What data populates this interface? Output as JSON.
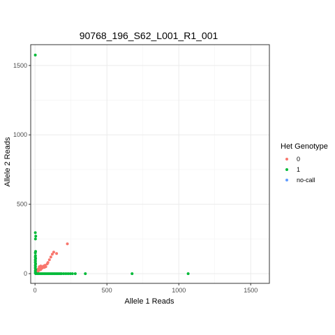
{
  "chart_data": {
    "type": "scatter",
    "title": "90768_196_S62_L001_R1_001",
    "xlabel": "Allele 1 Reads",
    "ylabel": "Allele 2 Reads",
    "xlim": [
      -30,
      1630
    ],
    "ylim": [
      -70,
      1650
    ],
    "x_ticks": [
      0,
      500,
      1000,
      1500
    ],
    "y_ticks": [
      0,
      500,
      1000,
      1500
    ],
    "x_tick_labels": [
      "0",
      "500",
      "1000",
      "1500"
    ],
    "y_tick_labels": [
      "0",
      "500",
      "1000",
      "1500"
    ],
    "grid": true,
    "legend": {
      "title": "Het Genotype",
      "position": "right",
      "entries": [
        {
          "label": "0",
          "color": "#F8766D"
        },
        {
          "label": "1",
          "color": "#00BA38"
        },
        {
          "label": "no-call",
          "color": "#619CFF"
        }
      ]
    },
    "series": [
      {
        "name": "0",
        "color": "#F8766D",
        "points": [
          [
            10,
            10
          ],
          [
            15,
            20
          ],
          [
            20,
            30
          ],
          [
            25,
            35
          ],
          [
            30,
            25
          ],
          [
            35,
            40
          ],
          [
            40,
            30
          ],
          [
            45,
            45
          ],
          [
            50,
            40
          ],
          [
            55,
            50
          ],
          [
            60,
            55
          ],
          [
            65,
            45
          ],
          [
            70,
            60
          ],
          [
            75,
            50
          ],
          [
            85,
            70
          ],
          [
            90,
            80
          ],
          [
            100,
            100
          ],
          [
            110,
            120
          ],
          [
            120,
            140
          ],
          [
            130,
            155
          ],
          [
            150,
            145
          ],
          [
            225,
            215
          ],
          [
            20,
            15
          ],
          [
            30,
            50
          ],
          [
            40,
            55
          ]
        ]
      },
      {
        "name": "1",
        "color": "#00BA38",
        "points": [
          [
            2,
            1575
          ],
          [
            2,
            295
          ],
          [
            5,
            270
          ],
          [
            3,
            250
          ],
          [
            4,
            160
          ],
          [
            2,
            150
          ],
          [
            3,
            130
          ],
          [
            2,
            120
          ],
          [
            4,
            110
          ],
          [
            2,
            100
          ],
          [
            3,
            90
          ],
          [
            2,
            80
          ],
          [
            4,
            70
          ],
          [
            2,
            60
          ],
          [
            3,
            50
          ],
          [
            2,
            40
          ],
          [
            4,
            30
          ],
          [
            2,
            20
          ],
          [
            3,
            10
          ],
          [
            2,
            5
          ],
          [
            5,
            0
          ],
          [
            15,
            0
          ],
          [
            25,
            0
          ],
          [
            35,
            0
          ],
          [
            45,
            0
          ],
          [
            55,
            0
          ],
          [
            65,
            0
          ],
          [
            75,
            0
          ],
          [
            85,
            0
          ],
          [
            95,
            0
          ],
          [
            105,
            0
          ],
          [
            115,
            0
          ],
          [
            125,
            0
          ],
          [
            135,
            0
          ],
          [
            145,
            0
          ],
          [
            155,
            0
          ],
          [
            165,
            0
          ],
          [
            175,
            0
          ],
          [
            185,
            0
          ],
          [
            200,
            0
          ],
          [
            215,
            0
          ],
          [
            230,
            0
          ],
          [
            245,
            0
          ],
          [
            260,
            0
          ],
          [
            280,
            0
          ],
          [
            350,
            0
          ],
          [
            675,
            0
          ],
          [
            1065,
            0
          ]
        ]
      },
      {
        "name": "no-call",
        "color": "#619CFF",
        "points": []
      }
    ]
  }
}
